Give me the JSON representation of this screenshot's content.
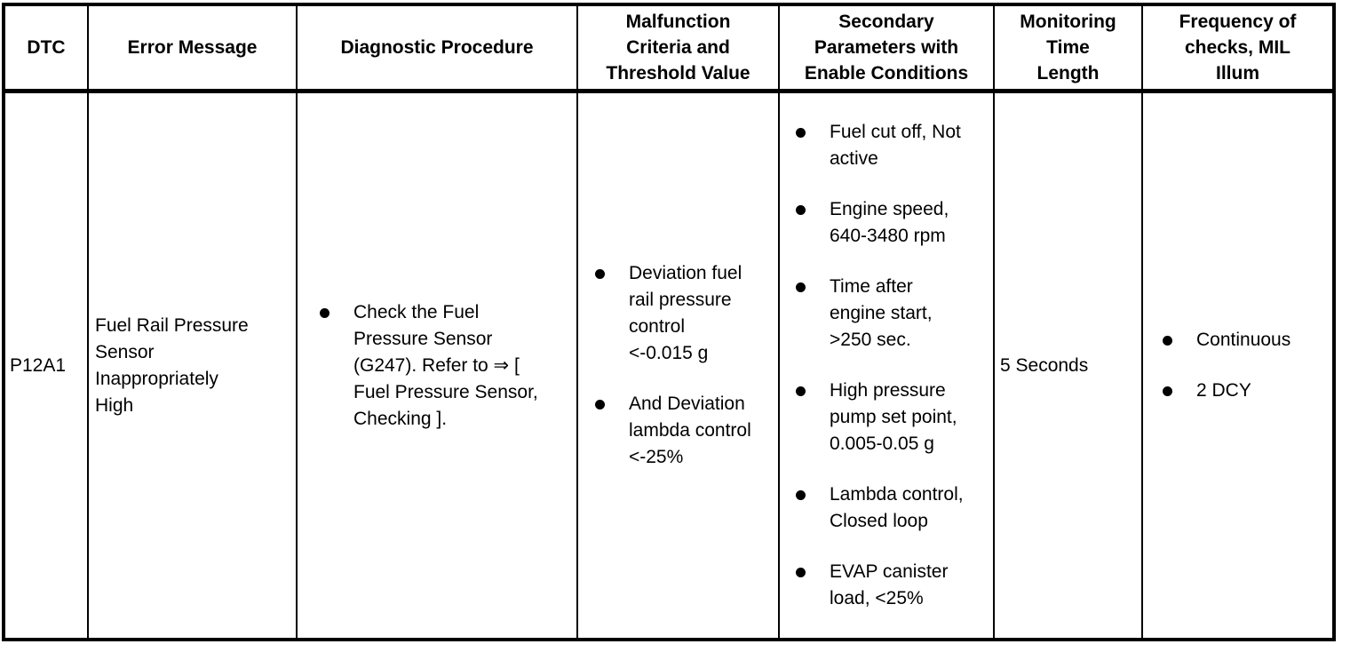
{
  "table": {
    "columns": [
      {
        "key": "dtc",
        "label": "DTC"
      },
      {
        "key": "error_message",
        "label": "Error Message"
      },
      {
        "key": "diagnostic_procedure",
        "label": "Diagnostic Procedure"
      },
      {
        "key": "malfunction_criteria",
        "label": "Malfunction\nCriteria and\nThreshold Value"
      },
      {
        "key": "secondary_parameters",
        "label": "Secondary\nParameters with\nEnable Conditions"
      },
      {
        "key": "monitoring_time",
        "label": "Monitoring\nTime\nLength"
      },
      {
        "key": "frequency",
        "label": "Frequency of\nchecks, MIL\nIllum"
      }
    ],
    "row": {
      "dtc": "P12A1",
      "error_message": "Fuel Rail Pressure\nSensor\nInappropriately\nHigh",
      "diagnostic_procedure": [
        "Check the Fuel\nPressure Sensor\n(G247). Refer to ⇒ [\nFuel Pressure Sensor,\nChecking ]."
      ],
      "malfunction_criteria": [
        "Deviation fuel\nrail pressure\ncontrol\n<-0.015 g",
        "And Deviation\nlambda control\n<-25%"
      ],
      "secondary_parameters": [
        "Fuel cut off, Not\nactive",
        "Engine speed,\n640-3480 rpm",
        "Time after\nengine start,\n>250 sec.",
        "High pressure\npump set point,\n0.005-0.05 g",
        "Lambda control,\nClosed loop",
        "EVAP canister\nload, <25%"
      ],
      "monitoring_time": "5 Seconds",
      "frequency": [
        "Continuous",
        "2 DCY"
      ]
    },
    "colors": {
      "border": "#000000",
      "text": "#000000",
      "background": "#ffffff"
    }
  }
}
